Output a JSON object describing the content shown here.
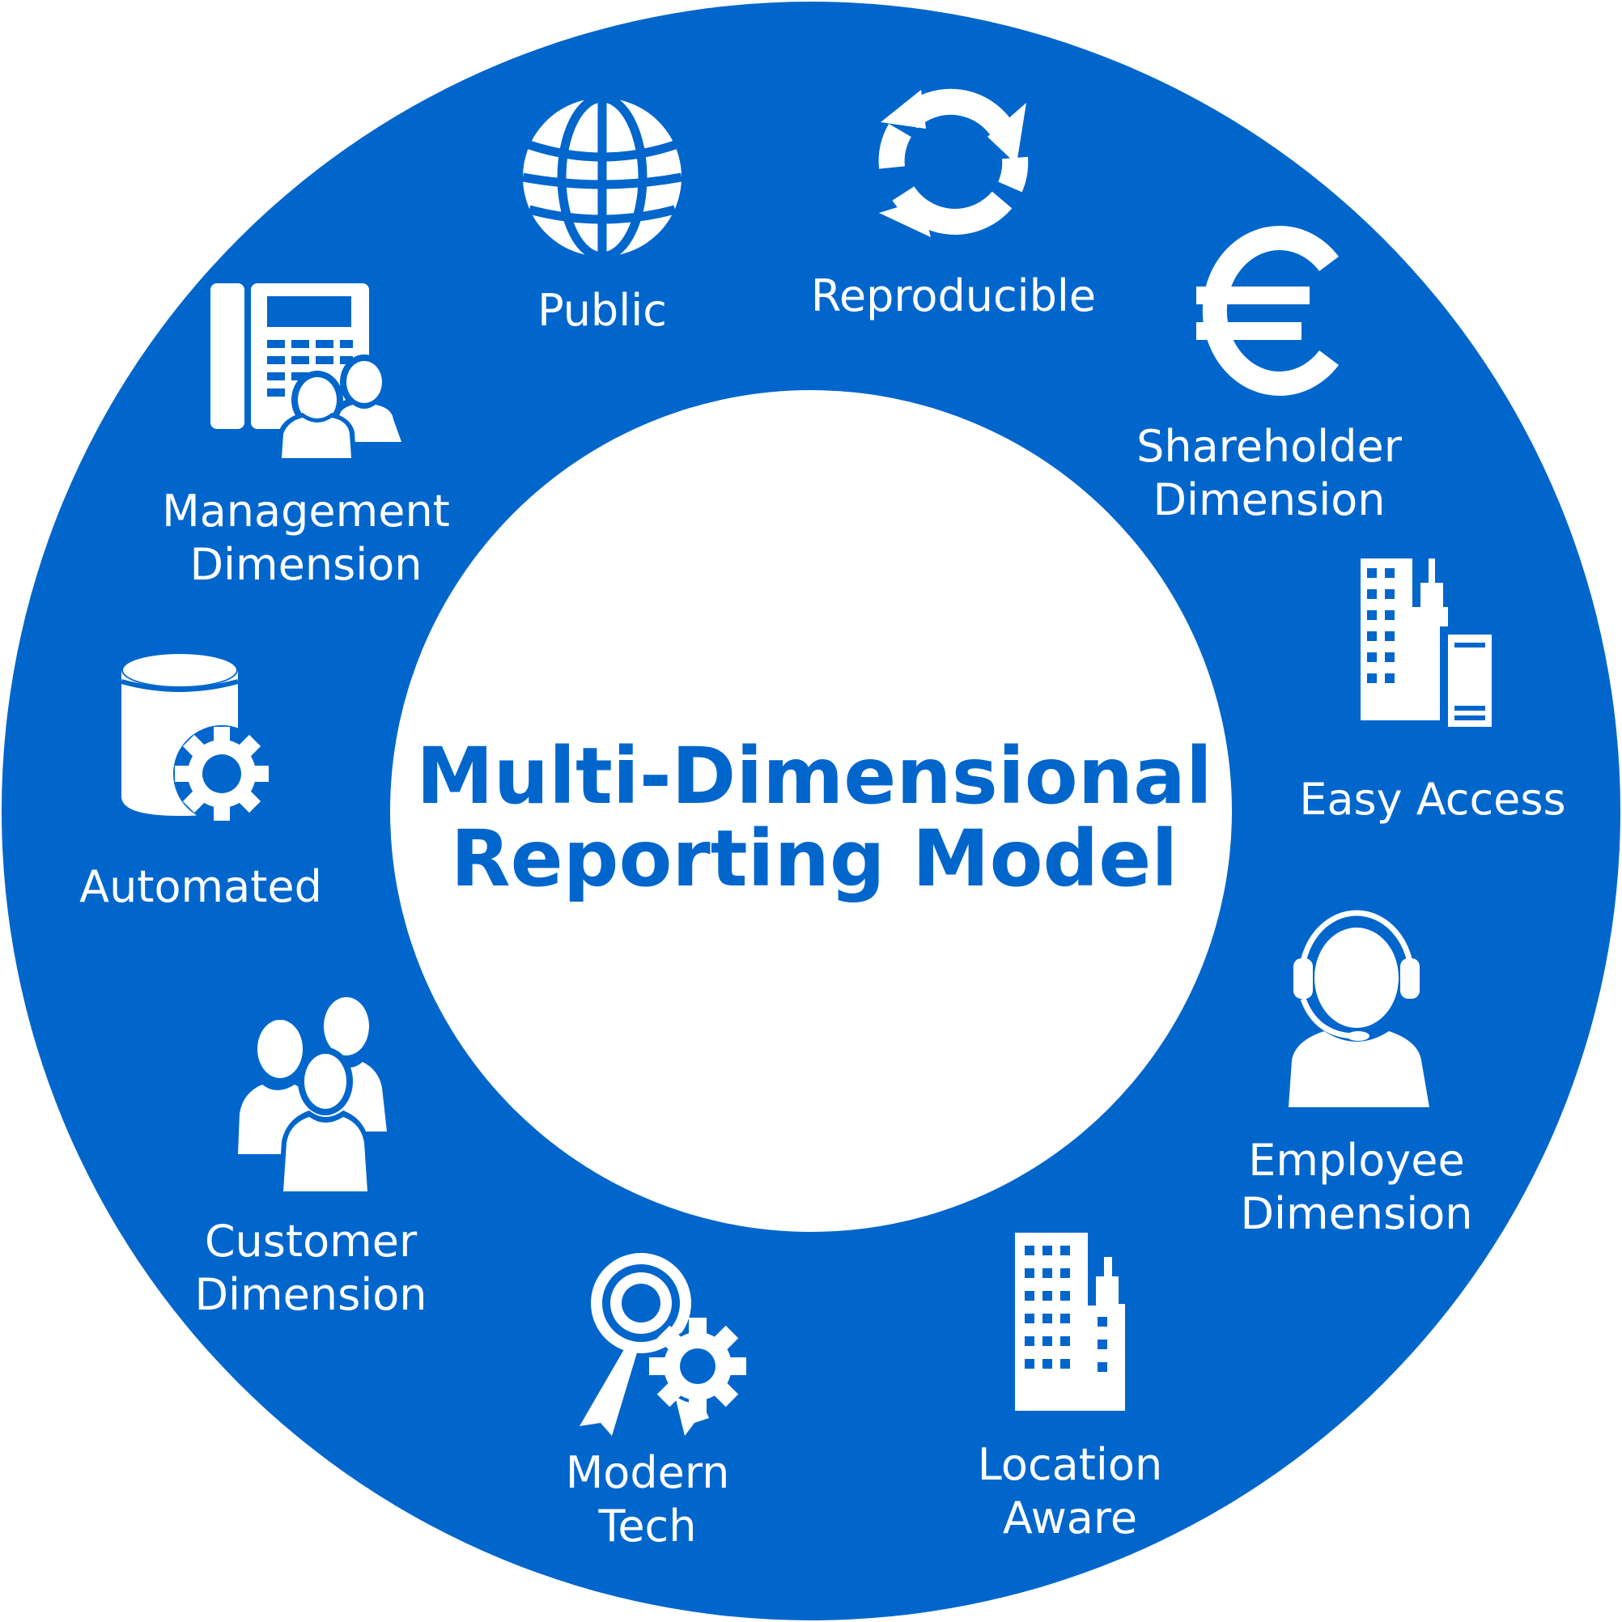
{
  "colors": {
    "ring": "#0066cc",
    "center": "#ffffff",
    "text_on_ring": "#ffffff",
    "title": "#0066cc"
  },
  "center_title": {
    "line1": "Multi-Dimensional",
    "line2": "Reporting Model"
  },
  "segments": [
    {
      "icon": "globe-icon",
      "lines": [
        "Public"
      ]
    },
    {
      "icon": "refresh-icon",
      "lines": [
        "Reproducible"
      ]
    },
    {
      "icon": "euro-icon",
      "lines": [
        "Shareholder",
        "Dimension"
      ]
    },
    {
      "icon": "buildings-document-icon",
      "lines": [
        "Easy Access"
      ]
    },
    {
      "icon": "headset-person-icon",
      "lines": [
        "Employee",
        "Dimension"
      ]
    },
    {
      "icon": "city-building-icon",
      "lines": [
        "Location",
        "Aware"
      ]
    },
    {
      "icon": "award-gear-icon",
      "lines": [
        "Modern",
        "Tech"
      ]
    },
    {
      "icon": "group-people-icon",
      "lines": [
        "Customer",
        "Dimension"
      ]
    },
    {
      "icon": "database-gear-icon",
      "lines": [
        "Automated"
      ]
    },
    {
      "icon": "phone-users-icon",
      "lines": [
        "Management",
        "Dimension"
      ]
    }
  ]
}
